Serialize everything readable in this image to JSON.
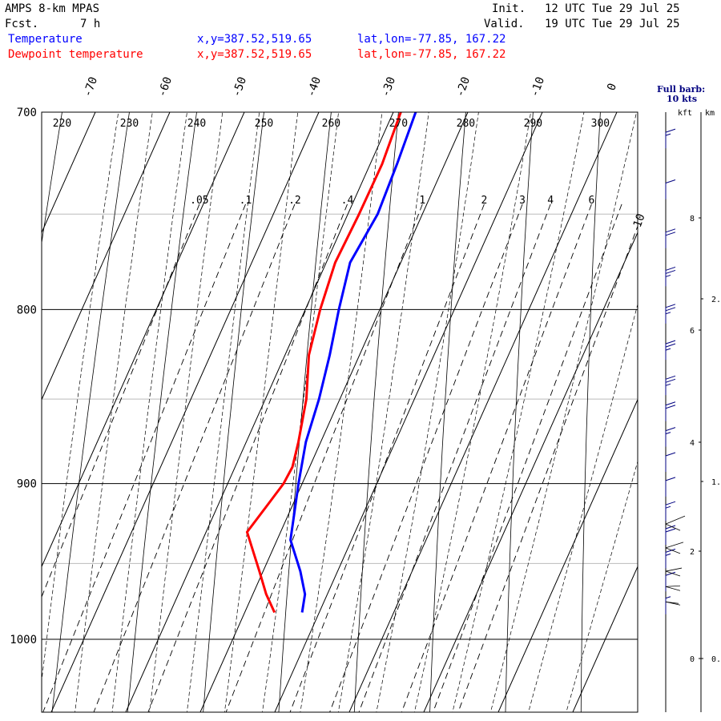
{
  "header": {
    "model": "AMPS 8-km MPAS",
    "fcst_label": "Fcst.",
    "fcst_value": "7 h",
    "init_label": "Init.",
    "init_value": "12 UTC Tue 29 Jul 25",
    "valid_label": "Valid.",
    "valid_value": "19 UTC Tue 29 Jul 25"
  },
  "series_info": [
    {
      "name": "Temperature",
      "xy": "x,y=387.52,519.65",
      "latlon": "lat,lon=-77.85, 167.22",
      "color": "#0000ff"
    },
    {
      "name": "Dewpoint temperature",
      "xy": "x,y=387.52,519.65",
      "latlon": "lat,lon=-77.85, 167.22",
      "color": "#ff0000"
    }
  ],
  "wind_legend": {
    "line1": "Full barb:",
    "line2": "10 kts",
    "kft": "kft",
    "km": "km"
  },
  "chart_data": {
    "type": "line",
    "diagram": "skew-T log-p",
    "y_axis": "pressure (hPa)",
    "pressure_ticks": [
      "700",
      "800",
      "900",
      "1000"
    ],
    "pressure_range": [
      700,
      1050
    ],
    "isotherm_labels": [
      "-70",
      "-60",
      "-50",
      "-40",
      "-30",
      "-20",
      "-10",
      "0",
      "10"
    ],
    "dry_adiabat_labels": [
      "220",
      "230",
      "240",
      "250",
      "260",
      "270",
      "280",
      "290",
      "300"
    ],
    "mixing_ratio_labels": [
      ".05",
      ".1",
      ".2",
      ".4",
      "1",
      "2",
      "3",
      "4",
      "6"
    ],
    "series": [
      {
        "name": "Temperature",
        "color": "#0000ff",
        "points": [
          {
            "p": 700,
            "t": -27.0
          },
          {
            "p": 725,
            "t": -26.4
          },
          {
            "p": 750,
            "t": -26.0
          },
          {
            "p": 775,
            "t": -26.8
          },
          {
            "p": 800,
            "t": -25.5
          },
          {
            "p": 825,
            "t": -24.0
          },
          {
            "p": 850,
            "t": -22.8
          },
          {
            "p": 875,
            "t": -22.0
          },
          {
            "p": 900,
            "t": -20.5
          },
          {
            "p": 915,
            "t": -19.5
          },
          {
            "p": 935,
            "t": -18.2
          },
          {
            "p": 955,
            "t": -15.0
          },
          {
            "p": 970,
            "t": -13.0
          },
          {
            "p": 982,
            "t": -12.3
          }
        ]
      },
      {
        "name": "Dewpoint temperature",
        "color": "#ff0000",
        "points": [
          {
            "p": 700,
            "t": -29.0
          },
          {
            "p": 725,
            "t": -28.4
          },
          {
            "p": 750,
            "t": -28.5
          },
          {
            "p": 775,
            "t": -28.8
          },
          {
            "p": 800,
            "t": -28.0
          },
          {
            "p": 825,
            "t": -26.8
          },
          {
            "p": 850,
            "t": -24.5
          },
          {
            "p": 875,
            "t": -23.0
          },
          {
            "p": 890,
            "t": -22.3
          },
          {
            "p": 900,
            "t": -22.5
          },
          {
            "p": 915,
            "t": -23.5
          },
          {
            "p": 930,
            "t": -24.5
          },
          {
            "p": 955,
            "t": -20.5
          },
          {
            "p": 970,
            "t": -18.2
          },
          {
            "p": 982,
            "t": -16.0
          }
        ]
      }
    ],
    "height_axes": {
      "kft_ticks": [
        "8",
        "6",
        "4",
        "2",
        "0"
      ],
      "km_ticks": [
        "2.",
        "1.",
        "0."
      ]
    },
    "wind_profile_kts": [
      {
        "p": 715,
        "kts": 15
      },
      {
        "p": 740,
        "kts": 10
      },
      {
        "p": 765,
        "kts": 20
      },
      {
        "p": 785,
        "kts": 25
      },
      {
        "p": 805,
        "kts": 25
      },
      {
        "p": 825,
        "kts": 25
      },
      {
        "p": 845,
        "kts": 25
      },
      {
        "p": 860,
        "kts": 20
      },
      {
        "p": 875,
        "kts": 15
      },
      {
        "p": 890,
        "kts": 10
      },
      {
        "p": 905,
        "kts": 10
      },
      {
        "p": 920,
        "kts": 15
      },
      {
        "p": 935,
        "kts": 20
      },
      {
        "p": 950,
        "kts": 15
      },
      {
        "p": 965,
        "kts": 10
      },
      {
        "p": 980,
        "kts": 5
      }
    ]
  }
}
